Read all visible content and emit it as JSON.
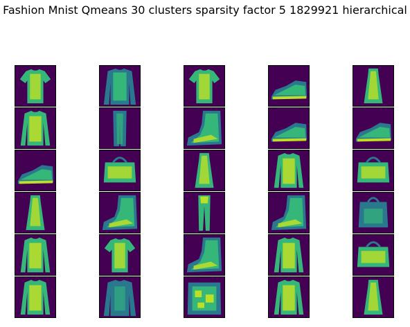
{
  "title": "Fashion Mnist Qmeans 30 clusters sparsity factor 5 1829921 hierarchical",
  "colors": {
    "background": "#440154",
    "mid": "#2a788e",
    "light": "#35b779",
    "bright": "#bddf26"
  },
  "grid": {
    "rows": 6,
    "cols": 5,
    "cells": [
      "tshirt",
      "shirt",
      "tshirt",
      "sneaker",
      "dress",
      "pullover",
      "trouser-faint",
      "ankle-boot",
      "sneaker",
      "sneaker",
      "sneaker",
      "bag",
      "dress",
      "pullover",
      "bag",
      "dress",
      "ankle-boot",
      "trouser",
      "ankle-boot",
      "bag-faint",
      "pullover",
      "tshirt",
      "ankle-boot",
      "pullover",
      "bag",
      "pullover",
      "shirt-faint",
      "bag-noisy",
      "pullover",
      "dress"
    ]
  }
}
